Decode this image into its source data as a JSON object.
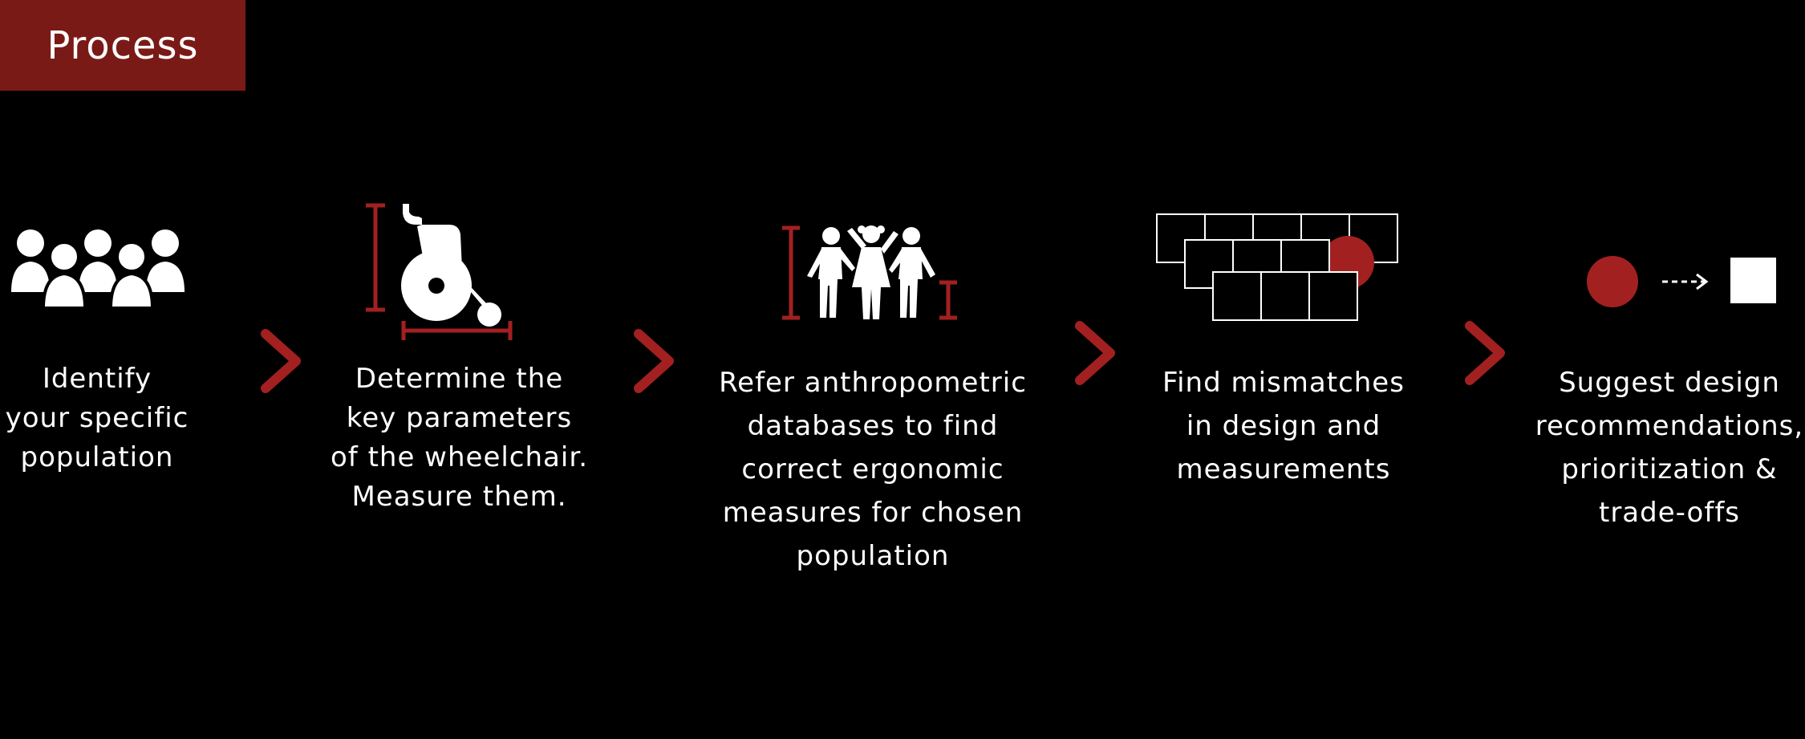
{
  "title": "Process",
  "colors": {
    "accent": "#a32020",
    "title_bg": "#7a1a16",
    "background": "#000000",
    "text": "#ffffff"
  },
  "steps": [
    {
      "icon": "group-of-people-icon",
      "lines": [
        "Identify",
        "your specific",
        "population"
      ]
    },
    {
      "icon": "wheelchair-measure-icon",
      "lines": [
        "Determine the",
        "key parameters",
        "of the wheelchair.",
        "Measure them."
      ]
    },
    {
      "icon": "children-height-measure-icon",
      "lines": [
        "Refer anthropometric",
        "databases to find",
        "correct ergonomic",
        "measures for chosen",
        "population"
      ]
    },
    {
      "icon": "grid-mismatch-icon",
      "lines": [
        "Find mismatches",
        "in design and",
        "measurements"
      ]
    },
    {
      "icon": "circle-to-square-icon",
      "lines": [
        "Suggest design",
        "recommendations,",
        "prioritization &",
        "trade-offs"
      ]
    }
  ],
  "connector_icon": "chevron-right-icon"
}
